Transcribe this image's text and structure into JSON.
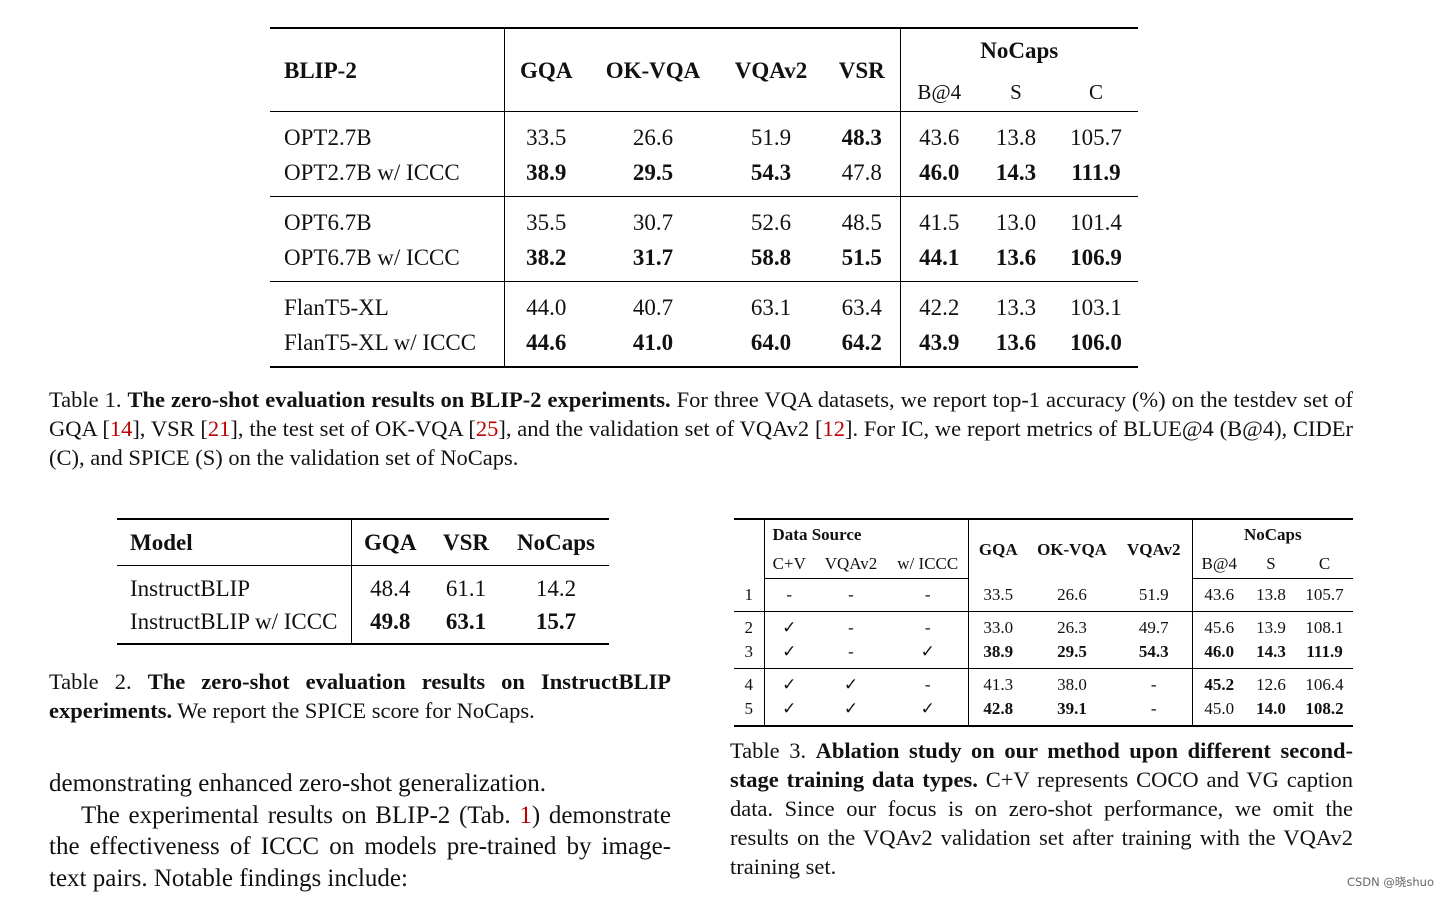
{
  "table1": {
    "header": {
      "model": "BLIP-2",
      "cols": [
        "GQA",
        "OK-VQA",
        "VQAv2",
        "VSR"
      ],
      "nocaps": "NoCaps",
      "nocaps_sub": [
        "B@4",
        "S",
        "C"
      ]
    },
    "rows": [
      {
        "name": "OPT2.7B",
        "v": [
          "33.5",
          "26.6",
          "51.9",
          "48.3",
          "43.6",
          "13.8",
          "105.7"
        ]
      },
      {
        "name": "OPT2.7B w/ ICCC",
        "v": [
          "38.9",
          "29.5",
          "54.3",
          "47.8",
          "46.0",
          "14.3",
          "111.9"
        ]
      },
      {
        "name": "OPT6.7B",
        "v": [
          "35.5",
          "30.7",
          "52.6",
          "48.5",
          "41.5",
          "13.0",
          "101.4"
        ]
      },
      {
        "name": "OPT6.7B w/ ICCC",
        "v": [
          "38.2",
          "31.7",
          "58.8",
          "51.5",
          "44.1",
          "13.6",
          "106.9"
        ]
      },
      {
        "name": "FlanT5-XL",
        "v": [
          "44.0",
          "40.7",
          "63.1",
          "63.4",
          "42.2",
          "13.3",
          "103.1"
        ]
      },
      {
        "name": "FlanT5-XL w/ ICCC",
        "v": [
          "44.6",
          "41.0",
          "64.0",
          "64.2",
          "43.9",
          "13.6",
          "106.0"
        ]
      }
    ],
    "caption": {
      "label": "Table 1. ",
      "bold": "The zero-shot evaluation results on BLIP-2 experiments.",
      "t1": " For three VQA datasets, we report top-1 accuracy (%) on the testdev set of GQA [",
      "r1": "14",
      "t2": "], VSR [",
      "r2": "21",
      "t3": "], the test set of OK-VQA [",
      "r3": "25",
      "t4": "], and the validation set of VQAv2 [",
      "r4": "12",
      "t5": "]. For IC, we report metrics of BLUE@4 (B@4), CIDEr (C), and SPICE (S) on the validation set of NoCaps."
    }
  },
  "table2": {
    "header": [
      "Model",
      "GQA",
      "VSR",
      "NoCaps"
    ],
    "rows": [
      {
        "name": "InstructBLIP",
        "v": [
          "48.4",
          "61.1",
          "14.2"
        ]
      },
      {
        "name": "InstructBLIP w/ ICCC",
        "v": [
          "49.8",
          "63.1",
          "15.7"
        ]
      }
    ],
    "caption": {
      "label": "Table 2. ",
      "bold": "The zero-shot evaluation results on InstructBLIP experiments.",
      "rest": " We report the SPICE score for NoCaps."
    }
  },
  "table3": {
    "header": {
      "data_source": "Data Source",
      "ds_sub": [
        "C+V",
        "VQAv2",
        "w/ ICCC"
      ],
      "cols": [
        "GQA",
        "OK-VQA",
        "VQAv2"
      ],
      "nocaps": "NoCaps",
      "nocaps_sub": [
        "B@4",
        "S",
        "C"
      ]
    },
    "rows": [
      {
        "id": "1",
        "ds": [
          "-",
          "-",
          "-"
        ],
        "v": [
          "33.5",
          "26.6",
          "51.9",
          "43.6",
          "13.8",
          "105.7"
        ]
      },
      {
        "id": "2",
        "ds": [
          "✓",
          "-",
          "-"
        ],
        "v": [
          "33.0",
          "26.3",
          "49.7",
          "45.6",
          "13.9",
          "108.1"
        ]
      },
      {
        "id": "3",
        "ds": [
          "✓",
          "-",
          "✓"
        ],
        "v": [
          "38.9",
          "29.5",
          "54.3",
          "46.0",
          "14.3",
          "111.9"
        ]
      },
      {
        "id": "4",
        "ds": [
          "✓",
          "✓",
          "-"
        ],
        "v": [
          "41.3",
          "38.0",
          "-",
          "45.2",
          "12.6",
          "106.4"
        ]
      },
      {
        "id": "5",
        "ds": [
          "✓",
          "✓",
          "✓"
        ],
        "v": [
          "42.8",
          "39.1",
          "-",
          "45.0",
          "14.0",
          "108.2"
        ]
      }
    ],
    "caption": {
      "label": "Table 3. ",
      "bold": "Ablation study on our method upon different second-stage training data types.",
      "rest": " C+V represents COCO and VG caption data. Since our focus is on zero-shot performance, we omit the results on the VQAv2 validation set after training with the VQAv2 training set."
    }
  },
  "body": {
    "line1": "demonstrating enhanced zero-shot generalization.",
    "p2a": "The experimental results on BLIP-2 (Tab. ",
    "p2ref": "1",
    "p2b": ") demonstrate the effectiveness of ICCC on models pre-trained by image-text pairs. Notable findings include:"
  },
  "watermark": "CSDN @晓shuo"
}
